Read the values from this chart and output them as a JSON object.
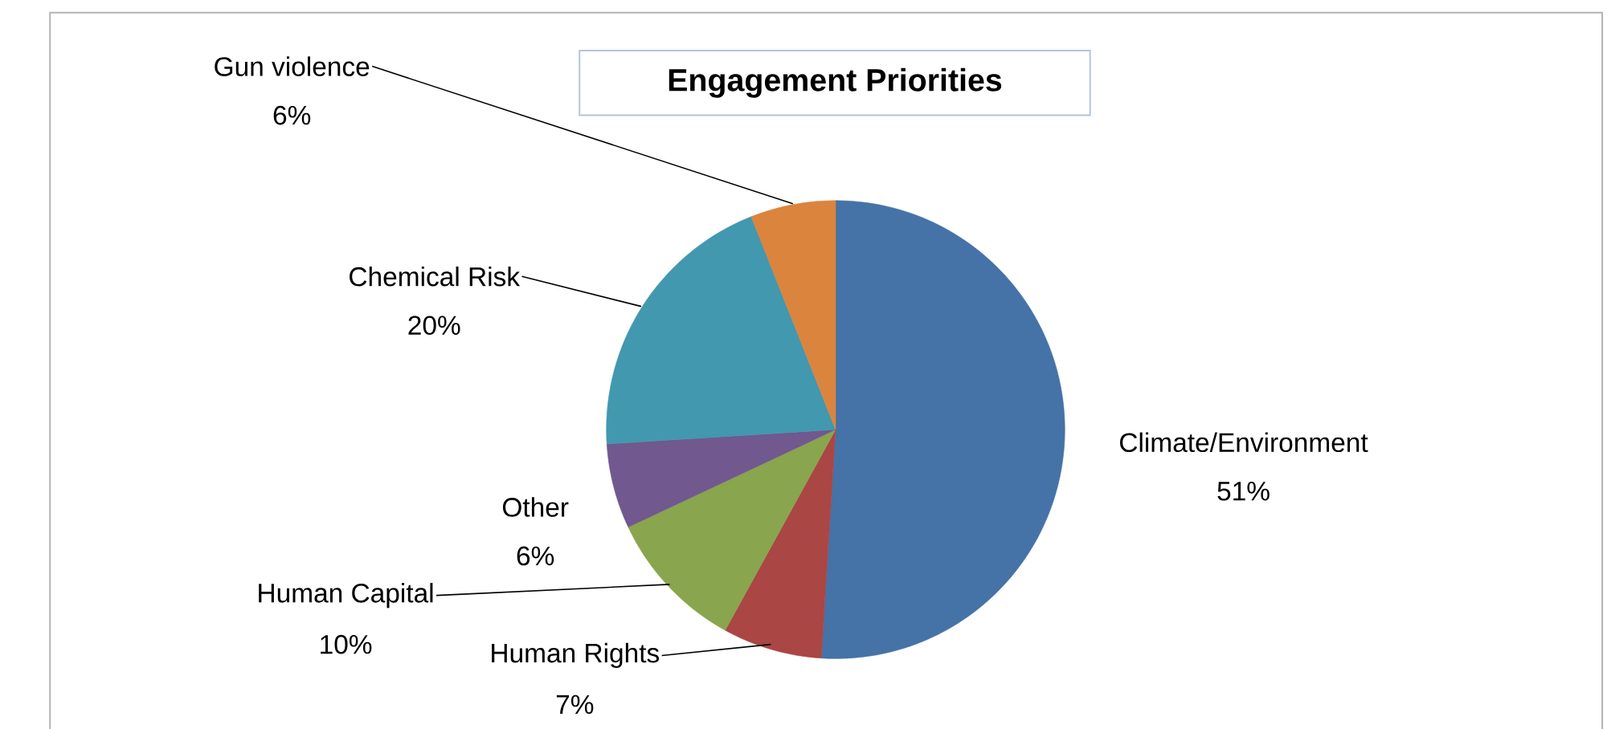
{
  "chart_data": {
    "type": "pie",
    "title": "Engagement Priorities",
    "categories": [
      "Climate/Environment",
      "Human Rights",
      "Human Capital",
      "Other",
      "Chemical Risk",
      "Gun violence"
    ],
    "values": [
      51,
      7,
      10,
      6,
      20,
      6
    ],
    "value_labels": [
      "51%",
      "7%",
      "10%",
      "6%",
      "20%",
      "6%"
    ],
    "colors": [
      "#4572a7",
      "#aa4643",
      "#89a54e",
      "#71588f",
      "#4198af",
      "#db843d"
    ]
  }
}
